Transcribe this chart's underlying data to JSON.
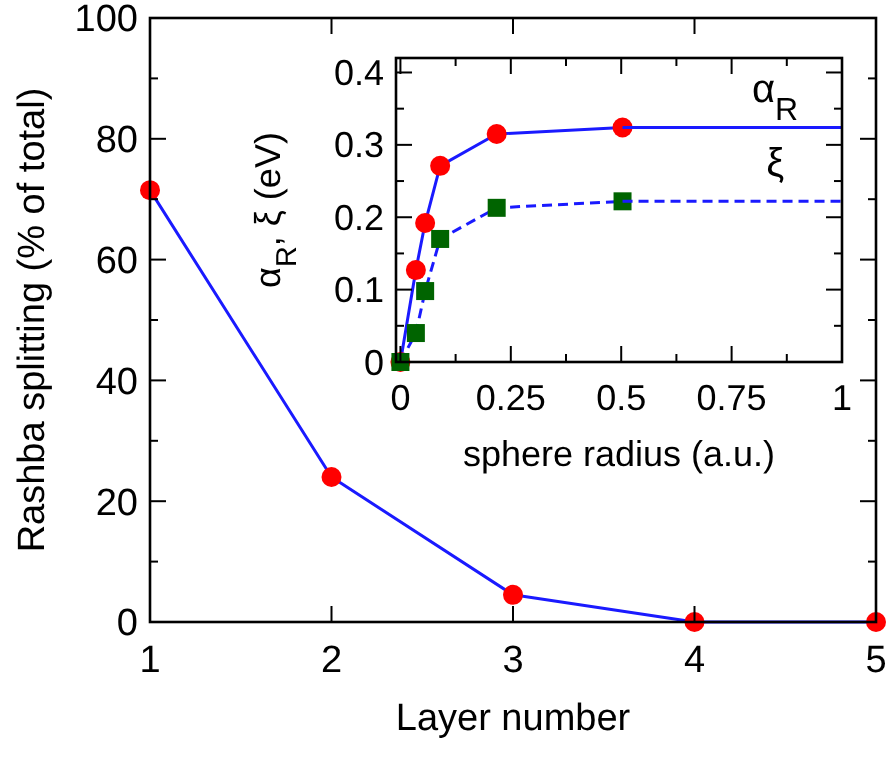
{
  "chart_data": [
    {
      "type": "line",
      "xlabel": "Layer number",
      "ylabel": "Rashba splitting (% of total)",
      "x": [
        1,
        2,
        3,
        4,
        5
      ],
      "xlim": [
        1,
        5
      ],
      "ylim": [
        0,
        100
      ],
      "xticks": [
        1,
        2,
        3,
        4,
        5
      ],
      "yticks": [
        0,
        {
          "value": 10,
          "label": null
        },
        20,
        {
          "value": 30,
          "label": null
        },
        40,
        {
          "value": 50,
          "label": null
        },
        60,
        {
          "value": 70,
          "label": null
        },
        80,
        {
          "value": 90,
          "label": null
        },
        100
      ],
      "marker": "circle",
      "line_style": "solid",
      "grid": false,
      "series": [
        {
          "color": "#1a1aff",
          "values": [
            71.5,
            24,
            4.5,
            0,
            0
          ]
        }
      ]
    },
    {
      "type": "line",
      "xlabel": "sphere radius (a.u.)",
      "ylabel": "α$_{R}$, ξ (eV)",
      "xlim": [
        -0.01,
        1
      ],
      "ylim": [
        0,
        0.42
      ],
      "xticks": [
        0,
        {
          "value": 0.125,
          "label": null
        },
        0.25,
        {
          "value": 0.375,
          "label": null
        },
        0.5,
        {
          "value": 0.625,
          "label": null
        },
        0.75,
        {
          "value": 0.875,
          "label": null
        },
        1
      ],
      "yticks": [
        0,
        {
          "value": 0.05,
          "label": null
        },
        0.1,
        {
          "value": 0.15,
          "label": null
        },
        0.2,
        {
          "value": 0.25,
          "label": null
        },
        0.3,
        {
          "value": 0.35,
          "label": null
        },
        0.4
      ],
      "grid": false,
      "series": [
        {
          "name": "α$_{R}$",
          "color": "#1a1aff",
          "x": [
            0,
            0.035,
            0.056,
            0.09,
            0.218,
            0.503
          ],
          "values": [
            0,
            0.127,
            0.192,
            0.271,
            0.315,
            0.324
          ],
          "marker": "circle",
          "line_style": "solid"
        },
        {
          "name": "ξ",
          "color": "#1a1aff",
          "x": [
            0,
            0.035,
            0.056,
            0.09,
            0.218,
            0.503
          ],
          "values": [
            0,
            0.04,
            0.098,
            0.17,
            0.213,
            0.222
          ],
          "marker": "square",
          "line_style": "dashed"
        },
        {
          "color": "#1a1aff",
          "x": [
            0.503,
            1
          ],
          "values": [
            0.324,
            0.324
          ],
          "marker": "none",
          "line_style": "solid"
        },
        {
          "color": "#1a1aff",
          "x": [
            0.503,
            1
          ],
          "values": [
            0.222,
            0.222
          ],
          "marker": "none",
          "line_style": "dashed"
        }
      ]
    }
  ]
}
